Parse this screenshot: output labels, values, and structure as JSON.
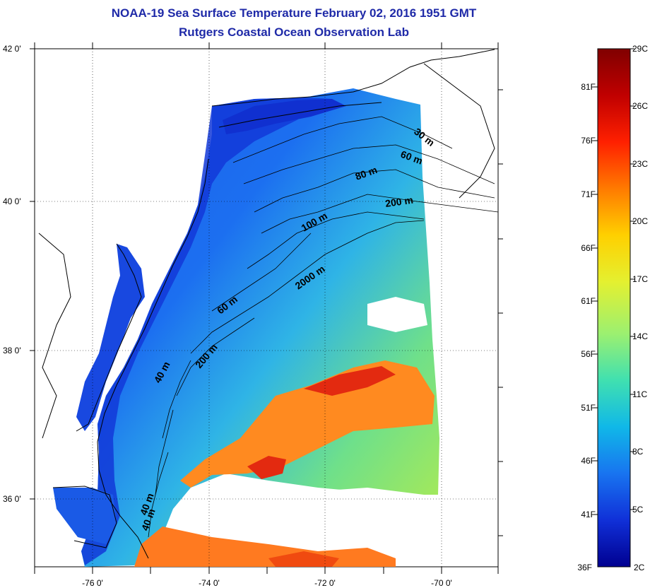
{
  "title": {
    "line1": "NOAA-19 Sea Surface Temperature February 02, 2016 1951 GMT",
    "line2": "Rutgers Coastal Ocean Observation Lab"
  },
  "map": {
    "lat_labels": [
      "42 0'",
      "40 0'",
      "38 0'",
      "36 0'"
    ],
    "lon_labels": [
      "-76 0'",
      "-74 0'",
      "-72 0'",
      "-70 0'"
    ],
    "contour_labels": [
      "30 m",
      "60 m",
      "80 m",
      "200 m",
      "100 m",
      "2000 m",
      "60 m",
      "200 m",
      "40 m",
      "40 m",
      "40 m"
    ]
  },
  "colorbar": {
    "fahrenheit_labels": [
      "81F",
      "76F",
      "71F",
      "66F",
      "61F",
      "56F",
      "51F",
      "46F",
      "41F",
      "36F"
    ],
    "celsius_labels": [
      "29C",
      "26C",
      "23C",
      "20C",
      "17C",
      "14C",
      "11C",
      "8C",
      "5C",
      "2C"
    ],
    "colors": [
      "#800000",
      "#c00000",
      "#ff2000",
      "#ff7a00",
      "#ffd000",
      "#e4f030",
      "#9cf070",
      "#40e0b0",
      "#10b8e8",
      "#1874f0",
      "#1030d8",
      "#000090"
    ]
  }
}
